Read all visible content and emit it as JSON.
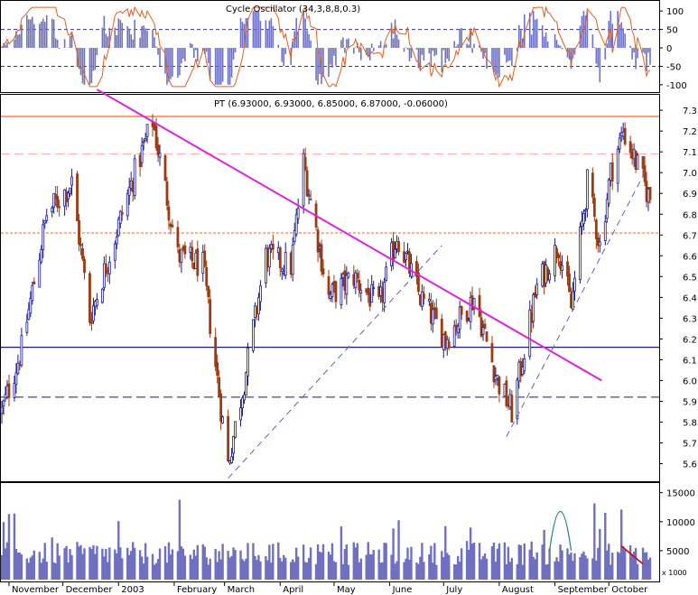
{
  "oscillator": {
    "title": "Cycle Oscillator (34,3,8,8,0.3)",
    "y_ticks": [
      100,
      50,
      0,
      -50,
      -100
    ],
    "ylim": [
      -115,
      120
    ],
    "upper_band": 50,
    "lower_band": -50,
    "colors": {
      "histogram": "#6f72c0",
      "signal": "#e06020",
      "band": "#3030a0"
    }
  },
  "price": {
    "title": "PT (6.93000, 6.93000, 6.85000, 6.87000, -0.06000)",
    "y_ticks": [
      "7.3",
      "7.2",
      "7.1",
      "7.0",
      "6.9",
      "6.8",
      "6.7",
      "6.6",
      "6.5",
      "6.4",
      "6.3",
      "6.2",
      "6.1",
      "6.0",
      "5.9",
      "5.8",
      "5.7",
      "5.6"
    ],
    "ylim": [
      5.52,
      7.37
    ],
    "colors": {
      "up": "#1a1a8c",
      "down": "#9c3a10",
      "resistance": "#ff6020",
      "trendline": "#dd22dd",
      "support": "#1a1a6e"
    }
  },
  "volume": {
    "y_ticks": [
      "15000",
      "10000",
      "5000"
    ],
    "unit_label": "x 1000",
    "ylim": [
      0,
      16500
    ],
    "colors": {
      "bars": "#7070c0",
      "arc": "#208080",
      "line": "#dd0000"
    }
  },
  "x_axis": {
    "labels": [
      "November",
      "December",
      "2003",
      "February",
      "March",
      "April",
      "May",
      "June",
      "July",
      "August",
      "September",
      "October"
    ]
  },
  "chart_data": {
    "type": "candlestick",
    "title": "PT (6.93000, 6.93000, 6.85000, 6.87000, -0.06000)",
    "last_bar": {
      "open": 6.93,
      "high": 6.93,
      "low": 6.85,
      "close": 6.87,
      "change": -0.06
    },
    "close_anchors": [
      {
        "date": "2002-10-28",
        "close": 5.85
      },
      {
        "date": "2002-11-08",
        "close": 6.15
      },
      {
        "date": "2002-11-22",
        "close": 6.8
      },
      {
        "date": "2002-12-06",
        "close": 6.95
      },
      {
        "date": "2002-12-16",
        "close": 6.3
      },
      {
        "date": "2003-01-10",
        "close": 7.0
      },
      {
        "date": "2003-01-20",
        "close": 7.25
      },
      {
        "date": "2003-02-03",
        "close": 6.6
      },
      {
        "date": "2003-02-17",
        "close": 6.55
      },
      {
        "date": "2003-03-03",
        "close": 5.6
      },
      {
        "date": "2003-03-12",
        "close": 6.0
      },
      {
        "date": "2003-03-24",
        "close": 6.6
      },
      {
        "date": "2003-04-07",
        "close": 6.55
      },
      {
        "date": "2003-04-14",
        "close": 7.05
      },
      {
        "date": "2003-04-28",
        "close": 6.4
      },
      {
        "date": "2003-05-12",
        "close": 6.5
      },
      {
        "date": "2003-05-26",
        "close": 6.35
      },
      {
        "date": "2003-06-05",
        "close": 6.7
      },
      {
        "date": "2003-06-18",
        "close": 6.4
      },
      {
        "date": "2003-07-02",
        "close": 6.2
      },
      {
        "date": "2003-07-18",
        "close": 6.4
      },
      {
        "date": "2003-07-31",
        "close": 6.0
      },
      {
        "date": "2003-08-08",
        "close": 5.85
      },
      {
        "date": "2003-08-22",
        "close": 6.45
      },
      {
        "date": "2003-09-03",
        "close": 6.65
      },
      {
        "date": "2003-09-10",
        "close": 6.35
      },
      {
        "date": "2003-09-19",
        "close": 6.95
      },
      {
        "date": "2003-09-26",
        "close": 6.65
      },
      {
        "date": "2003-10-02",
        "close": 7.0
      },
      {
        "date": "2003-10-09",
        "close": 7.2
      },
      {
        "date": "2003-10-16",
        "close": 7.05
      },
      {
        "date": "2003-10-24",
        "close": 6.87
      }
    ],
    "horizontal_levels": [
      {
        "value": 7.27,
        "style": "solid",
        "color": "#ff6020"
      },
      {
        "value": 7.09,
        "style": "dashed",
        "color": "#ffb0b0"
      },
      {
        "value": 6.71,
        "style": "dotted",
        "color": "#ff6020"
      },
      {
        "value": 6.16,
        "style": "solid",
        "color": "#1a1a6e"
      },
      {
        "value": 5.92,
        "style": "dashed",
        "color": "#1a1a6e"
      }
    ],
    "trendlines": [
      {
        "from": {
          "date": "2002-12-20",
          "value": 7.4
        },
        "to": {
          "date": "2003-09-27",
          "value": 6.0
        },
        "color": "#dd22dd",
        "style": "solid"
      },
      {
        "from": {
          "date": "2003-03-03",
          "value": 5.53
        },
        "to": {
          "date": "2003-06-30",
          "value": 6.65
        },
        "color": "#6060c0",
        "style": "dashed"
      },
      {
        "from": {
          "date": "2003-08-05",
          "value": 5.73
        },
        "to": {
          "date": "2003-10-21",
          "value": 7.0
        },
        "color": "#6060c0",
        "style": "dashed"
      }
    ],
    "ylim": [
      5.52,
      7.37
    ],
    "xlabel": "",
    "ylabel": "",
    "x_start": "2002-10-28",
    "x_end": "2003-10-24",
    "legend": "none",
    "grid": false
  }
}
